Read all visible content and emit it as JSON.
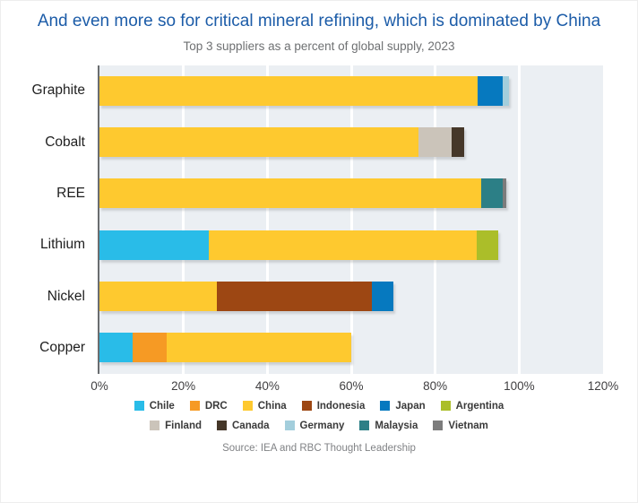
{
  "chart_data": {
    "type": "bar",
    "orientation": "horizontal",
    "stacked": true,
    "title": "And even more so for critical mineral refining, which is dominated by China",
    "subtitle": "Top 3 suppliers as a percent of global supply, 2023",
    "source": "Source: IEA and RBC Thought Leadership",
    "xlim": [
      0,
      120
    ],
    "grid": true,
    "gridlines": [
      20,
      40,
      60,
      80,
      100
    ],
    "x_ticks": [
      {
        "value": 0,
        "label": "0%"
      },
      {
        "value": 20,
        "label": "20%"
      },
      {
        "value": 40,
        "label": "40%"
      },
      {
        "value": 60,
        "label": "60%"
      },
      {
        "value": 80,
        "label": "80%"
      },
      {
        "value": 100,
        "label": "100%"
      },
      {
        "value": 120,
        "label": "120%"
      }
    ],
    "categories": [
      "Graphite",
      "Cobalt",
      "REE",
      "Lithium",
      "Nickel",
      "Copper"
    ],
    "legend_position": "bottom",
    "legend_rows": [
      6,
      5
    ],
    "legend": [
      {
        "name": "Chile",
        "color": "#29bce8"
      },
      {
        "name": "DRC",
        "color": "#f69a24"
      },
      {
        "name": "China",
        "color": "#fec92f"
      },
      {
        "name": "Indonesia",
        "color": "#9d4713"
      },
      {
        "name": "Japan",
        "color": "#0679bf"
      },
      {
        "name": "Argentina",
        "color": "#abbe29"
      },
      {
        "name": "Finland",
        "color": "#cbc4ba"
      },
      {
        "name": "Canada",
        "color": "#453729"
      },
      {
        "name": "Germany",
        "color": "#a3cedc"
      },
      {
        "name": "Malaysia",
        "color": "#2c7f86"
      },
      {
        "name": "Vietnam",
        "color": "#7c7c7c"
      }
    ],
    "bars": [
      {
        "category": "Graphite",
        "segments": [
          {
            "name": "China",
            "value": 90
          },
          {
            "name": "Japan",
            "value": 6
          },
          {
            "name": "Germany",
            "value": 1.5
          }
        ]
      },
      {
        "category": "Cobalt",
        "segments": [
          {
            "name": "China",
            "value": 76
          },
          {
            "name": "Finland",
            "value": 8
          },
          {
            "name": "Canada",
            "value": 3
          }
        ]
      },
      {
        "category": "REE",
        "segments": [
          {
            "name": "China",
            "value": 91
          },
          {
            "name": "Malaysia",
            "value": 5
          },
          {
            "name": "Vietnam",
            "value": 1
          }
        ]
      },
      {
        "category": "Lithium",
        "segments": [
          {
            "name": "Chile",
            "value": 26
          },
          {
            "name": "China",
            "value": 64
          },
          {
            "name": "Argentina",
            "value": 5
          }
        ]
      },
      {
        "category": "Nickel",
        "segments": [
          {
            "name": "China",
            "value": 28
          },
          {
            "name": "Indonesia",
            "value": 37
          },
          {
            "name": "Japan",
            "value": 5
          }
        ]
      },
      {
        "category": "Copper",
        "segments": [
          {
            "name": "Chile",
            "value": 8
          },
          {
            "name": "DRC",
            "value": 8
          },
          {
            "name": "China",
            "value": 44
          }
        ]
      }
    ]
  }
}
